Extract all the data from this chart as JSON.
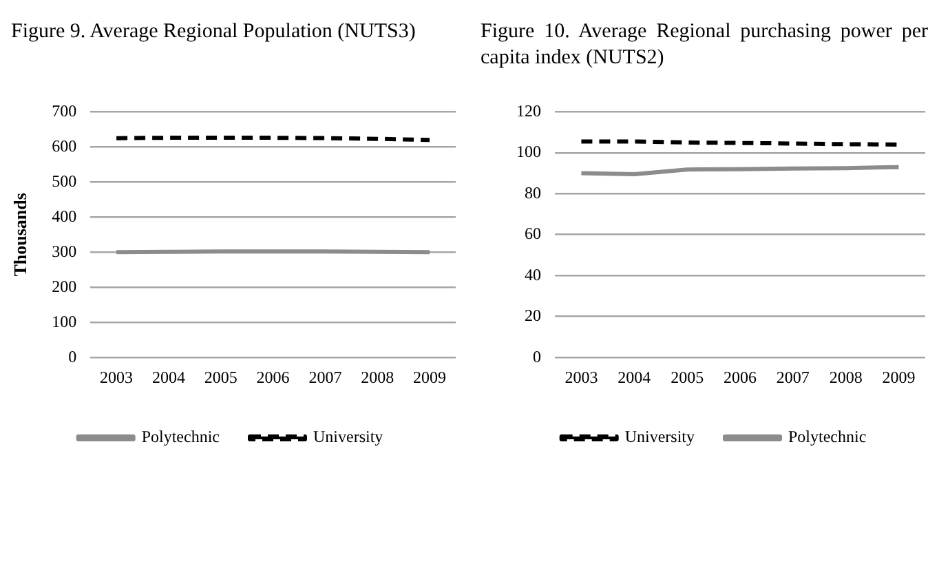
{
  "chart_data": [
    {
      "type": "line",
      "title": "Figure 9. Average Regional Population (NUTS3)",
      "ylabel": "Thousands",
      "categories": [
        "2003",
        "2004",
        "2005",
        "2006",
        "2007",
        "2008",
        "2009"
      ],
      "ylim": [
        0,
        700
      ],
      "yticks": [
        0,
        100,
        200,
        300,
        400,
        500,
        600,
        700
      ],
      "grid": "y",
      "legend": "bottom",
      "marker": "none",
      "series": [
        {
          "name": "Polytechnic",
          "color": "#8c8c8c",
          "line_style": "solid",
          "values": [
            300,
            301,
            302,
            302,
            302,
            301,
            300
          ]
        },
        {
          "name": "University",
          "color": "#000000",
          "line_style": "dashed",
          "values": [
            625,
            626,
            626,
            626,
            625,
            623,
            620
          ]
        }
      ]
    },
    {
      "type": "line",
      "title": "Figure 10. Average Regional purchasing power per capita index (NUTS2)",
      "categories": [
        "2003",
        "2004",
        "2005",
        "2006",
        "2007",
        "2008",
        "2009"
      ],
      "ylim": [
        0,
        120
      ],
      "yticks": [
        0,
        20,
        40,
        60,
        80,
        100,
        120
      ],
      "grid": "y",
      "legend": "bottom",
      "marker": "none",
      "series": [
        {
          "name": "University",
          "color": "#000000",
          "line_style": "dashed",
          "values": [
            105.5,
            105.5,
            105,
            104.8,
            104.5,
            104.2,
            104
          ]
        },
        {
          "name": "Polytechnic",
          "color": "#8c8c8c",
          "line_style": "solid",
          "values": [
            90,
            89.5,
            91.8,
            92,
            92.3,
            92.5,
            93
          ]
        }
      ]
    }
  ]
}
